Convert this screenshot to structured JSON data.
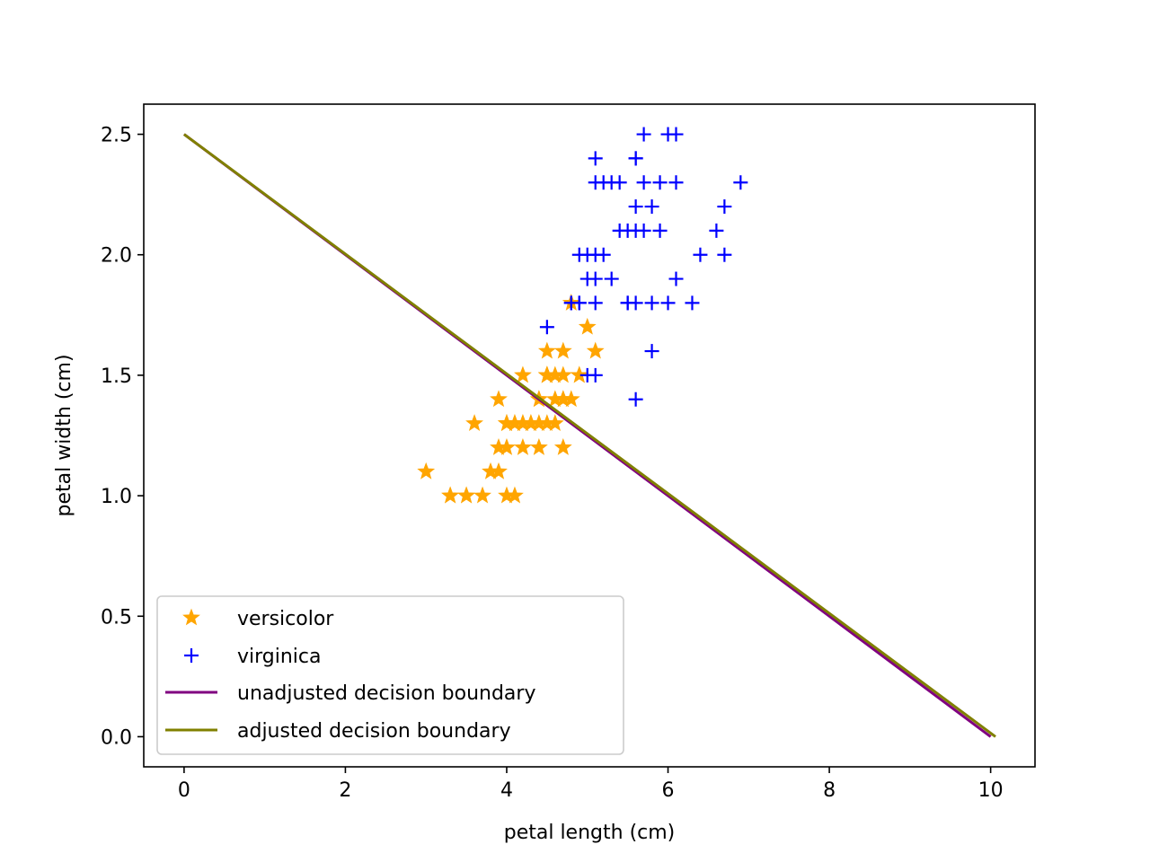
{
  "chart_data": {
    "type": "scatter",
    "title": "",
    "xlabel": "petal length (cm)",
    "ylabel": "petal width (cm)",
    "xlim": [
      -0.5,
      10.55
    ],
    "ylim": [
      -0.125,
      2.625
    ],
    "xticks": [
      0,
      2,
      4,
      6,
      8,
      10
    ],
    "yticks": [
      0.0,
      0.5,
      1.0,
      1.5,
      2.0,
      2.5
    ],
    "xtick_labels": [
      "0",
      "2",
      "4",
      "6",
      "8",
      "10"
    ],
    "ytick_labels": [
      "0.0",
      "0.5",
      "1.0",
      "1.5",
      "2.0",
      "2.5"
    ],
    "grid": false,
    "legend_position": "lower-left",
    "series": [
      {
        "name": "versicolor",
        "marker": "star",
        "color": "#FFA500",
        "points": [
          [
            4.7,
            1.4
          ],
          [
            4.5,
            1.5
          ],
          [
            4.9,
            1.5
          ],
          [
            4.0,
            1.3
          ],
          [
            4.6,
            1.5
          ],
          [
            4.5,
            1.3
          ],
          [
            4.7,
            1.6
          ],
          [
            3.3,
            1.0
          ],
          [
            4.6,
            1.3
          ],
          [
            3.9,
            1.4
          ],
          [
            3.5,
            1.0
          ],
          [
            4.2,
            1.5
          ],
          [
            4.0,
            1.0
          ],
          [
            4.7,
            1.4
          ],
          [
            3.6,
            1.3
          ],
          [
            4.4,
            1.4
          ],
          [
            4.5,
            1.5
          ],
          [
            4.1,
            1.0
          ],
          [
            4.5,
            1.5
          ],
          [
            3.9,
            1.1
          ],
          [
            4.8,
            1.8
          ],
          [
            4.0,
            1.3
          ],
          [
            4.9,
            1.5
          ],
          [
            4.7,
            1.2
          ],
          [
            4.3,
            1.3
          ],
          [
            4.4,
            1.4
          ],
          [
            4.8,
            1.4
          ],
          [
            5.0,
            1.7
          ],
          [
            4.5,
            1.5
          ],
          [
            3.5,
            1.0
          ],
          [
            3.8,
            1.1
          ],
          [
            3.7,
            1.0
          ],
          [
            3.9,
            1.2
          ],
          [
            5.1,
            1.6
          ],
          [
            4.5,
            1.5
          ],
          [
            4.5,
            1.6
          ],
          [
            4.7,
            1.5
          ],
          [
            4.4,
            1.3
          ],
          [
            4.1,
            1.3
          ],
          [
            4.0,
            1.3
          ],
          [
            4.4,
            1.2
          ],
          [
            4.6,
            1.4
          ],
          [
            4.0,
            1.2
          ],
          [
            3.3,
            1.0
          ],
          [
            4.2,
            1.3
          ],
          [
            4.2,
            1.2
          ],
          [
            4.2,
            1.3
          ],
          [
            4.3,
            1.3
          ],
          [
            3.0,
            1.1
          ],
          [
            4.1,
            1.3
          ]
        ]
      },
      {
        "name": "virginica",
        "marker": "plus",
        "color": "#0000FF",
        "points": [
          [
            6.0,
            2.5
          ],
          [
            5.1,
            1.9
          ],
          [
            5.9,
            2.1
          ],
          [
            5.6,
            1.8
          ],
          [
            5.8,
            2.2
          ],
          [
            6.6,
            2.1
          ],
          [
            4.5,
            1.7
          ],
          [
            6.3,
            1.8
          ],
          [
            5.8,
            1.8
          ],
          [
            6.1,
            2.5
          ],
          [
            5.1,
            2.0
          ],
          [
            5.3,
            1.9
          ],
          [
            5.5,
            2.1
          ],
          [
            5.0,
            2.0
          ],
          [
            5.1,
            2.4
          ],
          [
            5.3,
            2.3
          ],
          [
            5.5,
            1.8
          ],
          [
            6.7,
            2.2
          ],
          [
            6.9,
            2.3
          ],
          [
            5.0,
            1.5
          ],
          [
            5.7,
            2.3
          ],
          [
            4.9,
            2.0
          ],
          [
            6.7,
            2.0
          ],
          [
            4.9,
            1.8
          ],
          [
            5.7,
            2.1
          ],
          [
            6.0,
            1.8
          ],
          [
            4.8,
            1.8
          ],
          [
            4.9,
            1.8
          ],
          [
            5.6,
            2.1
          ],
          [
            5.8,
            1.6
          ],
          [
            6.1,
            1.9
          ],
          [
            6.4,
            2.0
          ],
          [
            5.6,
            2.2
          ],
          [
            5.1,
            1.5
          ],
          [
            5.6,
            1.4
          ],
          [
            6.1,
            2.3
          ],
          [
            5.6,
            2.4
          ],
          [
            5.5,
            1.8
          ],
          [
            4.8,
            1.8
          ],
          [
            5.4,
            2.1
          ],
          [
            5.6,
            2.4
          ],
          [
            5.1,
            2.3
          ],
          [
            5.9,
            2.3
          ],
          [
            5.7,
            2.5
          ],
          [
            5.2,
            2.3
          ],
          [
            5.0,
            1.9
          ],
          [
            5.2,
            2.0
          ],
          [
            5.4,
            2.3
          ],
          [
            5.1,
            1.8
          ]
        ]
      },
      {
        "name": "unadjusted decision boundary",
        "line": true,
        "color": "#800080",
        "points": [
          [
            0.0,
            2.5
          ],
          [
            10.0,
            0.0
          ]
        ]
      },
      {
        "name": "adjusted decision boundary",
        "line": true,
        "color": "#808000",
        "points": [
          [
            0.0,
            2.5
          ],
          [
            10.06,
            0.0
          ]
        ]
      }
    ]
  }
}
